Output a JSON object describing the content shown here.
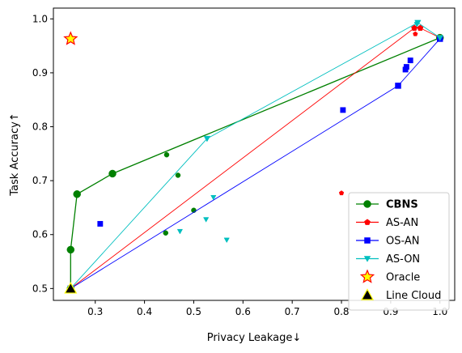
{
  "chart_data": {
    "type": "scatter",
    "xlabel": "Privacy Leakage↓",
    "ylabel": "Task Accuracy↑",
    "xlim": [
      0.215,
      1.03
    ],
    "ylim": [
      0.478,
      1.02
    ],
    "xticks": [
      0.3,
      0.4,
      0.5,
      0.6,
      0.7,
      0.8,
      0.9,
      1.0
    ],
    "xtick_labels": [
      "0.3",
      "0.4",
      "0.5",
      "0.6",
      "0.7",
      "0.8",
      "0.9",
      "1.0"
    ],
    "yticks": [
      0.5,
      0.6,
      0.7,
      0.8,
      0.9,
      1.0
    ],
    "ytick_labels": [
      "0.5",
      "0.6",
      "0.7",
      "0.8",
      "0.9",
      "1.0"
    ],
    "grid": false,
    "legend_position": "bottom-right",
    "series": [
      {
        "name": "CBNS",
        "color": "#008000",
        "marker": "circle",
        "bold_label": true,
        "frontier": [
          [
            0.25,
            0.5
          ],
          [
            0.25,
            0.572
          ],
          [
            0.263,
            0.675
          ],
          [
            0.335,
            0.713
          ],
          [
            1.0,
            0.965
          ]
        ],
        "points": [
          [
            0.445,
            0.748
          ],
          [
            0.468,
            0.71
          ],
          [
            0.5,
            0.645
          ],
          [
            0.443,
            0.603
          ]
        ]
      },
      {
        "name": "AS-AN",
        "color": "#ff0000",
        "marker": "pentagon",
        "bold_label": false,
        "frontier": [
          [
            0.25,
            0.5
          ],
          [
            0.948,
            0.983
          ],
          [
            0.96,
            0.983
          ],
          [
            1.0,
            0.965
          ]
        ],
        "points": [
          [
            0.95,
            0.972
          ],
          [
            0.8,
            0.677
          ]
        ]
      },
      {
        "name": "OS-AN",
        "color": "#0000ff",
        "marker": "square",
        "bold_label": false,
        "frontier": [
          [
            0.25,
            0.5
          ],
          [
            0.915,
            0.876
          ],
          [
            1.0,
            0.963
          ]
        ],
        "points": [
          [
            0.31,
            0.62
          ],
          [
            0.803,
            0.831
          ],
          [
            0.93,
            0.906
          ],
          [
            0.932,
            0.911
          ],
          [
            0.94,
            0.923
          ]
        ]
      },
      {
        "name": "AS-ON",
        "color": "#00bfbf",
        "marker": "triangle-down",
        "bold_label": false,
        "frontier": [
          [
            0.25,
            0.5
          ],
          [
            0.527,
            0.778
          ],
          [
            0.955,
            0.993
          ],
          [
            1.0,
            0.965
          ]
        ],
        "points": [
          [
            0.472,
            0.606
          ],
          [
            0.525,
            0.628
          ],
          [
            0.54,
            0.669
          ],
          [
            0.567,
            0.59
          ],
          [
            0.953,
            0.99
          ]
        ]
      }
    ],
    "special_points": [
      {
        "name": "Oracle",
        "marker": "star",
        "face": "#ffff00",
        "edge": "#ff0000",
        "x": 0.25,
        "y": 0.963
      },
      {
        "name": "Line Cloud",
        "marker": "triangle-up",
        "face": "#000000",
        "edge": "#ffff00",
        "x": 0.25,
        "y": 0.5
      }
    ]
  }
}
